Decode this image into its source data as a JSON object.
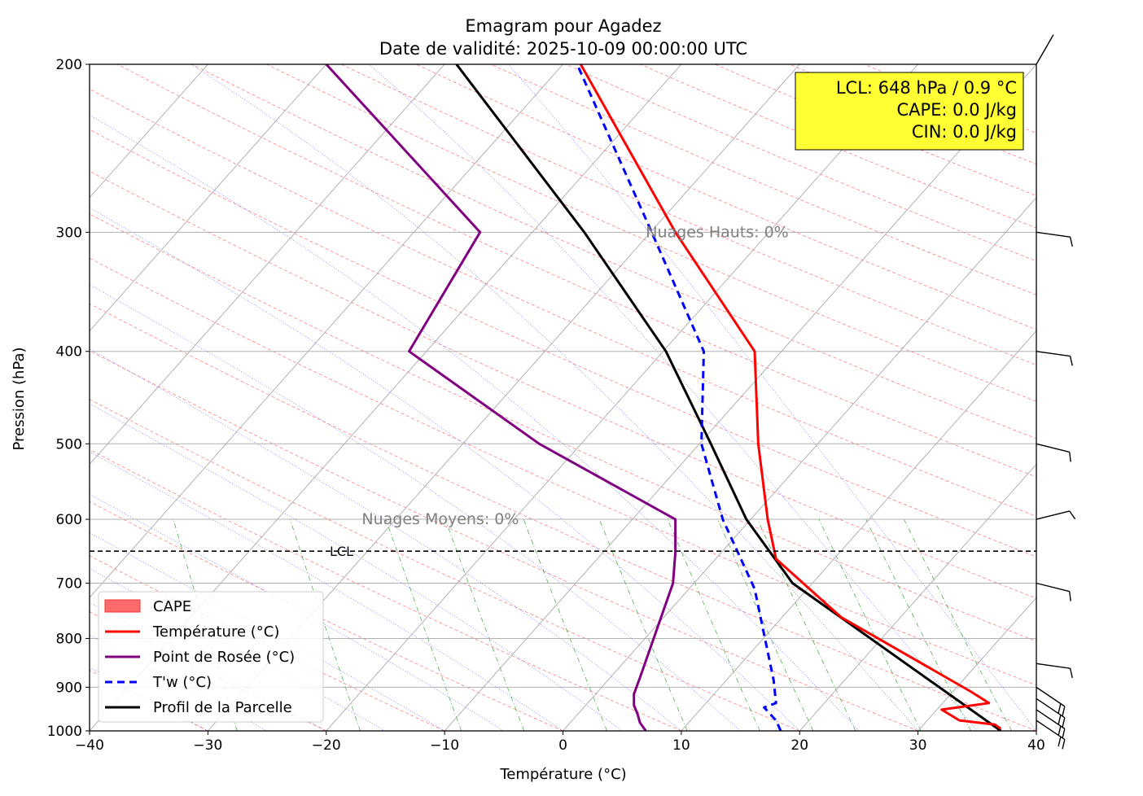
{
  "chart_data": {
    "type": "line",
    "subtype": "emagram",
    "title_line1": "Emagram pour Agadez",
    "title_line2": "Date de validité: 2025-10-09 00:00:00 UTC",
    "xlabel": "Température (°C)",
    "ylabel": "Pression (hPa)",
    "xlim": [
      -40,
      40
    ],
    "ylim": [
      1000,
      200
    ],
    "yscale": "log",
    "x_ticks": [
      -40,
      -30,
      -20,
      -10,
      0,
      10,
      20,
      30,
      40
    ],
    "x_tick_labels": [
      "−40",
      "−30",
      "−20",
      "−10",
      "0",
      "10",
      "20",
      "30",
      "40"
    ],
    "y_ticks": [
      1000,
      900,
      800,
      700,
      600,
      500,
      400,
      300,
      200
    ],
    "y_tick_labels": [
      "1000",
      "900",
      "800",
      "700",
      "600",
      "500",
      "400",
      "300",
      "200"
    ],
    "grid": true,
    "series": [
      {
        "name": "Température (°C)",
        "color": "#ff0000",
        "style": "solid",
        "points": [
          [
            37.0,
            995
          ],
          [
            36.5,
            985
          ],
          [
            33.5,
            975
          ],
          [
            32.0,
            950
          ],
          [
            36.0,
            935
          ],
          [
            34.5,
            910
          ],
          [
            23.5,
            760
          ],
          [
            18.0,
            660
          ],
          [
            17.3,
            600
          ],
          [
            16.5,
            500
          ],
          [
            16.2,
            400
          ],
          [
            9.5,
            300
          ],
          [
            1.5,
            200
          ]
        ]
      },
      {
        "name": "Point de Rosée (°C)",
        "color": "#800080",
        "style": "solid",
        "points": [
          [
            7.0,
            1000
          ],
          [
            6.5,
            980
          ],
          [
            6.3,
            960
          ],
          [
            6.0,
            940
          ],
          [
            6.0,
            915
          ],
          [
            6.5,
            880
          ],
          [
            9.3,
            700
          ],
          [
            9.5,
            650
          ],
          [
            9.5,
            600
          ],
          [
            -2.0,
            500
          ],
          [
            -13.0,
            400
          ],
          [
            -7.0,
            300
          ],
          [
            -20.0,
            200
          ]
        ]
      },
      {
        "name": "T'w (°C)",
        "color": "#0000ff",
        "style": "dashed",
        "points": [
          [
            18.4,
            1000
          ],
          [
            18.0,
            975
          ],
          [
            17.0,
            945
          ],
          [
            18.0,
            935
          ],
          [
            17.8,
            885
          ],
          [
            16.2,
            710
          ],
          [
            13.5,
            600
          ],
          [
            11.7,
            500
          ],
          [
            11.9,
            400
          ],
          [
            7.5,
            300
          ],
          [
            1.2,
            200
          ]
        ]
      },
      {
        "name": "Profil de la Parcelle",
        "color": "#000000",
        "style": "solid",
        "points": [
          [
            37.0,
            1000
          ],
          [
            19.4,
            700
          ],
          [
            15.5,
            600
          ],
          [
            12.5,
            500
          ],
          [
            8.7,
            400
          ],
          [
            1.8,
            300
          ],
          [
            -9.0,
            200
          ]
        ]
      }
    ],
    "legend": [
      {
        "label": "CAPE",
        "kind": "patch",
        "color": "#ff6b6b"
      },
      {
        "label": "Température (°C)",
        "kind": "line",
        "color": "#ff0000"
      },
      {
        "label": "Point de Rosée (°C)",
        "kind": "line",
        "color": "#800080"
      },
      {
        "label": "T'w (°C)",
        "kind": "dashed",
        "color": "#0000ff"
      },
      {
        "label": "Profil de la Parcelle",
        "kind": "line",
        "color": "#000000"
      }
    ],
    "legend_position": "bottom-left",
    "lcl": {
      "pressure": 648,
      "label": "LCL"
    },
    "annotations": [
      {
        "text": "Nuages Hauts: 0%",
        "x": 7.0,
        "p": 300
      },
      {
        "text": "Nuages Moyens: 0%",
        "x": -17.0,
        "p": 600
      }
    ],
    "info_box": {
      "line1": "LCL: 648 hPa / 0.9 °C",
      "line2": "CAPE: 0.0 J/kg",
      "line3": "CIN: 0.0 J/kg",
      "background": "#ffff33"
    },
    "wind_barbs": [
      {
        "p": 200,
        "direction": "N",
        "barbs": 0
      },
      {
        "p": 300,
        "direction": "W",
        "barbs": 1
      },
      {
        "p": 400,
        "direction": "W",
        "barbs": 1
      },
      {
        "p": 500,
        "direction": "WNW",
        "barbs": 1
      },
      {
        "p": 600,
        "direction": "WSW",
        "barbs": 1
      },
      {
        "p": 700,
        "direction": "WNW",
        "barbs": 1
      },
      {
        "p": 850,
        "direction": "W",
        "barbs": 1
      },
      {
        "p": 900,
        "direction": "SW",
        "barbs": 2
      },
      {
        "p": 925,
        "direction": "SW",
        "barbs": 2
      },
      {
        "p": 950,
        "direction": "SW",
        "barbs": 2
      },
      {
        "p": 975,
        "direction": "SW",
        "barbs": 2
      }
    ]
  }
}
